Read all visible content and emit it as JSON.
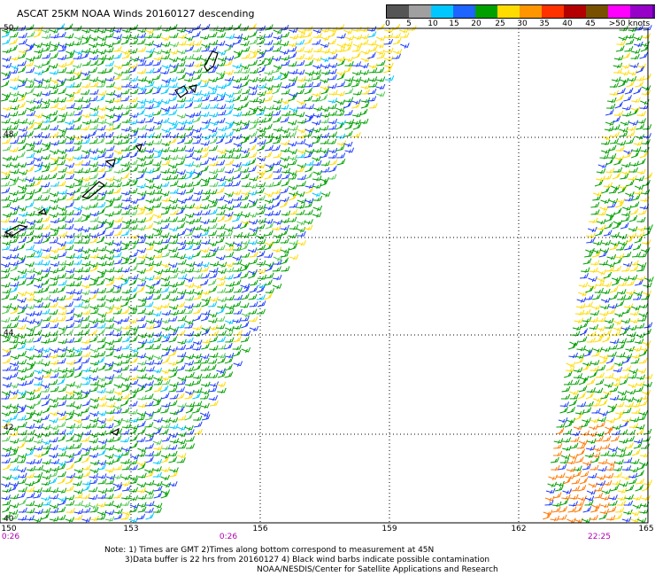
{
  "title": "ASCAT 25KM NOAA Winds 20160127 descending",
  "colorbar": {
    "labels": [
      "0",
      "5",
      "10",
      "15",
      "20",
      "25",
      "30",
      "35",
      "40",
      "45",
      ">50 knots"
    ],
    "colors": [
      "#555555",
      "#a0a0a0",
      "#00c8ff",
      "#1e64ff",
      "#00a000",
      "#ffdc00",
      "#ff9600",
      "#ff3200",
      "#b40000",
      "#785000",
      "#ff00ff",
      "#9600c8",
      "#5a00a0"
    ]
  },
  "map": {
    "lat_labels": [
      "50",
      "48",
      "46",
      "44",
      "42",
      "40"
    ],
    "lon_labels": [
      "150",
      "153",
      "156",
      "159",
      "162",
      "165"
    ],
    "time_labels": [
      "0:26",
      "0:26",
      "22:25"
    ]
  },
  "notes": {
    "line1": "Note: 1) Times are GMT 2)Times along bottom correspond to measurement at 45N",
    "line2": "3)Data buffer is 22 hrs from 20160127 4) Black wind barbs indicate possible contamination",
    "credit": "NOAA/NESDIS/Center for Satellite Applications and Research"
  }
}
